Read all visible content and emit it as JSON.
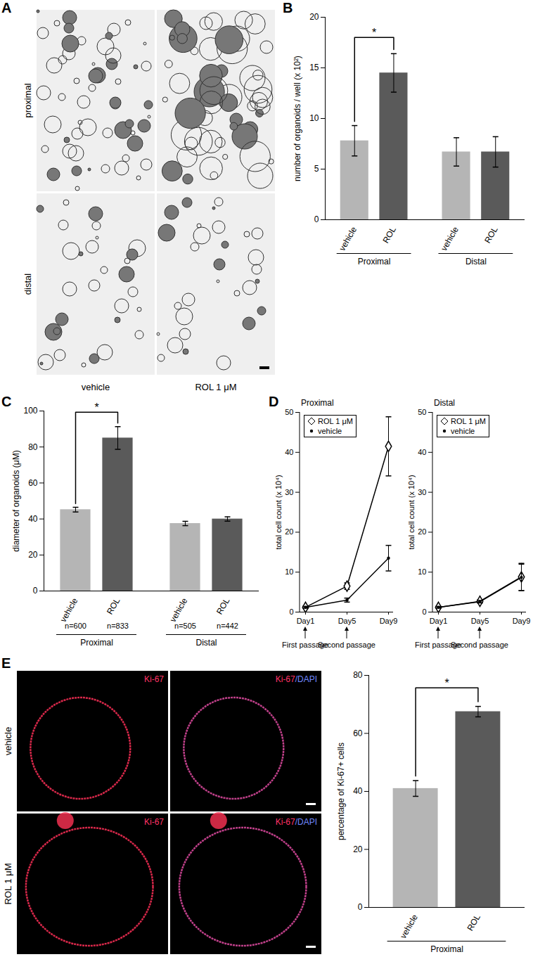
{
  "image_panels": [
    {
      "panel": "A",
      "row_labels": [
        "proximal",
        "distal"
      ],
      "column_labels": [
        "vehicle",
        "ROL 1 μM"
      ]
    },
    {
      "panel": "E",
      "row_labels": [
        "vehicle",
        "ROL 1 μM"
      ],
      "column_labels": [
        "Ki-67",
        "Ki-67/DAPI"
      ]
    }
  ],
  "chart_data": [
    {
      "panel": "B",
      "type": "bar",
      "categories": [
        "vehicle",
        "ROL",
        "vehicle",
        "ROL"
      ],
      "groups": [
        "Proximal",
        "Proximal",
        "Distal",
        "Distal"
      ],
      "values": [
        7.8,
        14.5,
        6.7,
        6.7
      ],
      "errors": [
        1.5,
        1.9,
        1.4,
        1.5
      ],
      "colors": [
        "#b5b5b5",
        "#5a5a5a",
        "#b5b5b5",
        "#5a5a5a"
      ],
      "ylabel": "number of organoids / well (x 10²)",
      "ylim": [
        0,
        20
      ],
      "yticks": [
        0,
        5,
        10,
        15,
        20
      ],
      "annotations": [
        {
          "from": 0,
          "to": 1,
          "label": "*"
        }
      ]
    },
    {
      "panel": "C",
      "type": "bar",
      "categories": [
        "vehicle",
        "ROL",
        "vehicle",
        "ROL"
      ],
      "groups": [
        "Proximal",
        "Proximal",
        "Distal",
        "Distal"
      ],
      "values": [
        45.2,
        85,
        37.5,
        40
      ],
      "errors": [
        1.3,
        6.3,
        1.2,
        1.2
      ],
      "n_labels": [
        "n=600",
        "n=833",
        "n=505",
        "n=442"
      ],
      "colors": [
        "#b5b5b5",
        "#5a5a5a",
        "#b5b5b5",
        "#5a5a5a"
      ],
      "ylabel": "diameter of organoids (μM)",
      "ylim": [
        0,
        100
      ],
      "yticks": [
        0,
        20,
        40,
        60,
        80,
        100
      ],
      "annotations": [
        {
          "from": 0,
          "to": 1,
          "label": "*"
        }
      ]
    },
    {
      "panel": "D",
      "type": "line",
      "title": "Proximal",
      "x": [
        "Day1",
        "Day5",
        "Day9"
      ],
      "series": [
        {
          "name": "ROL 1 μM",
          "marker": "diamond",
          "color": "#000000",
          "values": [
            1.2,
            6.5,
            41.5
          ],
          "errors": [
            0.3,
            0.8,
            7.4
          ]
        },
        {
          "name": "vehicle",
          "marker": "circle",
          "color": "#000000",
          "values": [
            1.2,
            3.0,
            13.5
          ],
          "errors": [
            0.2,
            0.5,
            3.2
          ]
        }
      ],
      "ylabel": "total cell count (x 10⁴)",
      "ylim": [
        0,
        50
      ],
      "yticks": [
        0,
        10,
        20,
        30,
        40,
        50
      ],
      "legend": "top-left",
      "x_annotations": [
        {
          "x": "Day1",
          "label": "First passage"
        },
        {
          "x": "Day5",
          "label": "Second passage"
        }
      ]
    },
    {
      "type": "line",
      "title": "Distal",
      "x": [
        "Day1",
        "Day5",
        "Day9"
      ],
      "series": [
        {
          "name": "ROL 1 μM",
          "marker": "diamond",
          "color": "#000000",
          "values": [
            1.2,
            2.7,
            8.8
          ],
          "errors": [
            0.2,
            0.4,
            3.4
          ]
        },
        {
          "name": "vehicle",
          "marker": "circle",
          "color": "#000000",
          "values": [
            1.2,
            2.6,
            8.7
          ],
          "errors": [
            0.2,
            0.3,
            3.3
          ]
        }
      ],
      "ylabel": "total cell count (x 10⁴)",
      "ylim": [
        0,
        50
      ],
      "yticks": [
        0,
        10,
        20,
        30,
        40,
        50
      ],
      "legend": "top-left",
      "x_annotations": [
        {
          "x": "Day1",
          "label": "First passage"
        },
        {
          "x": "Day5",
          "label": "Second passage"
        }
      ]
    },
    {
      "type": "bar",
      "categories": [
        "vehicle",
        "ROL"
      ],
      "groups": [
        "Proximal",
        "Proximal"
      ],
      "values": [
        41,
        67.5
      ],
      "errors": [
        2.7,
        1.8
      ],
      "colors": [
        "#b5b5b5",
        "#5a5a5a"
      ],
      "ylabel": "percentage of Ki-67+ cells",
      "ylim": [
        0,
        80
      ],
      "yticks": [
        0,
        20,
        40,
        60,
        80
      ],
      "annotations": [
        {
          "from": 0,
          "to": 1,
          "label": "*"
        }
      ]
    }
  ]
}
